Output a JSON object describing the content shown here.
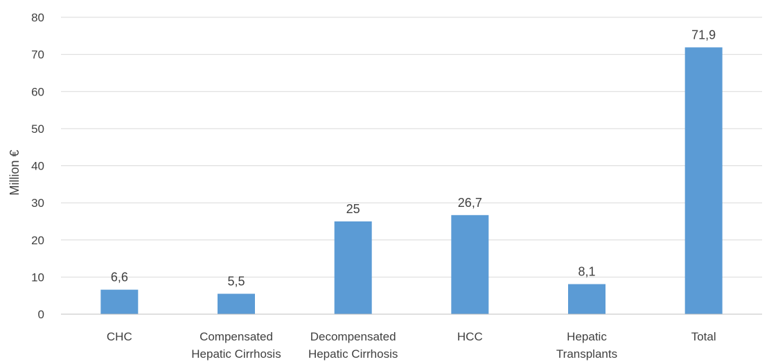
{
  "chart_data": {
    "type": "bar",
    "title": "",
    "xlabel": "",
    "ylabel": "Million €",
    "ylim": [
      0,
      80
    ],
    "yticks": [
      0,
      10,
      20,
      30,
      40,
      50,
      60,
      70,
      80
    ],
    "grid": true,
    "categories": [
      [
        "CHC"
      ],
      [
        "Compensated",
        "Hepatic Cirrhosis"
      ],
      [
        "Decompensated",
        "Hepatic Cirrhosis"
      ],
      [
        "HCC"
      ],
      [
        "Hepatic",
        "Transplants"
      ],
      [
        "Total"
      ]
    ],
    "values": [
      6.6,
      5.5,
      25,
      26.7,
      8.1,
      71.9
    ],
    "data_labels": [
      "6,6",
      "5,5",
      "25",
      "26,7",
      "8,1",
      "71,9"
    ],
    "bar_color": "#5b9bd5",
    "grid_color": "#d9d9d9",
    "text_color": "#404040"
  }
}
